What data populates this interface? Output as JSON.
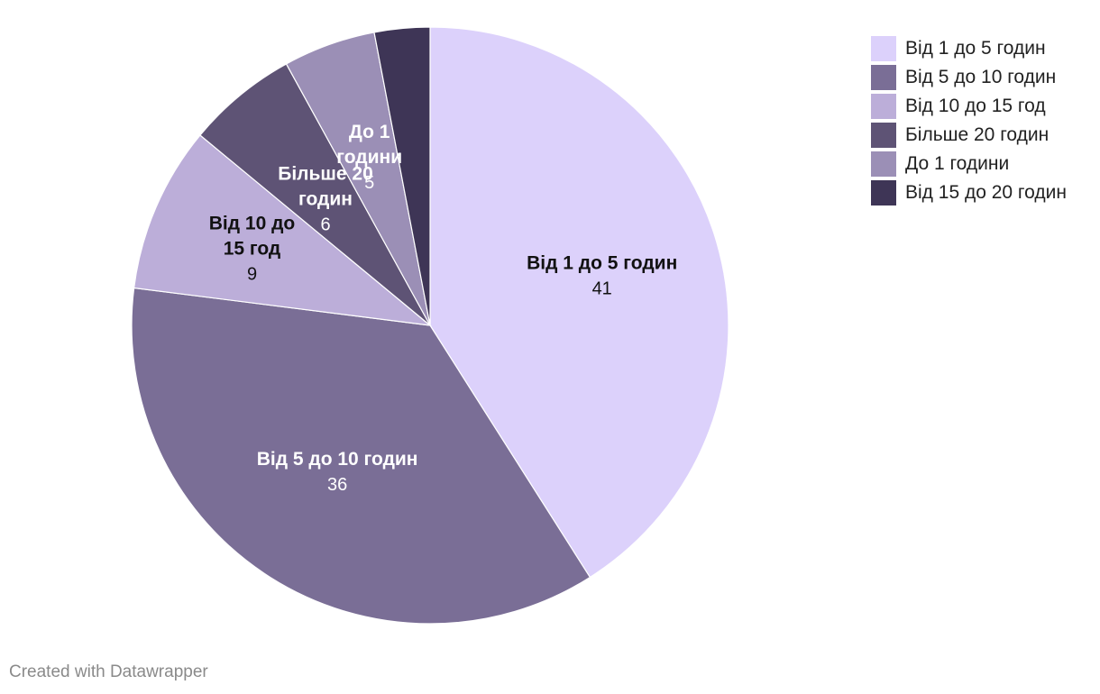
{
  "chart_data": {
    "type": "pie",
    "title": "",
    "slices": [
      {
        "name": "Від 1 до 5 годин",
        "label_lines": [
          "Від 1 до 5 годин"
        ],
        "value": 41,
        "color": "#dcd1fb",
        "text_color": "#111111"
      },
      {
        "name": "Від 5 до 10 годин",
        "label_lines": [
          "Від 5 до 10 годин"
        ],
        "value": 36,
        "color": "#7a6e96",
        "text_color": "#ffffff"
      },
      {
        "name": "Від 10 до 15 год",
        "label_lines": [
          "Від 10 до",
          "15 год"
        ],
        "value": 9,
        "color": "#bcaed9",
        "text_color": "#111111"
      },
      {
        "name": "Більше 20 годин",
        "label_lines": [
          "Більше 20",
          "годин"
        ],
        "value": 6,
        "color": "#5e5375",
        "text_color": "#ffffff"
      },
      {
        "name": "До 1 години",
        "label_lines": [
          "До 1",
          "години"
        ],
        "value": 5,
        "color": "#9b8fb6",
        "text_color": "#ffffff"
      },
      {
        "name": "Від 15 до 20 годин",
        "label_lines": [],
        "value": 3,
        "color": "#3e3556",
        "text_color": "#ffffff"
      }
    ],
    "legend_position": "top-right"
  },
  "legend": {
    "items": [
      {
        "label": "Від 1 до 5 годин",
        "color": "#dcd1fb"
      },
      {
        "label": "Від 5 до 10 годин",
        "color": "#7a6e96"
      },
      {
        "label": "Від 10 до 15 год",
        "color": "#bcaed9"
      },
      {
        "label": "Більше 20 годин",
        "color": "#5e5375"
      },
      {
        "label": "До 1 години",
        "color": "#9b8fb6"
      },
      {
        "label": "Від 15 до 20 годин",
        "color": "#3e3556"
      }
    ]
  },
  "footer": {
    "credit": "Created with Datawrapper"
  }
}
